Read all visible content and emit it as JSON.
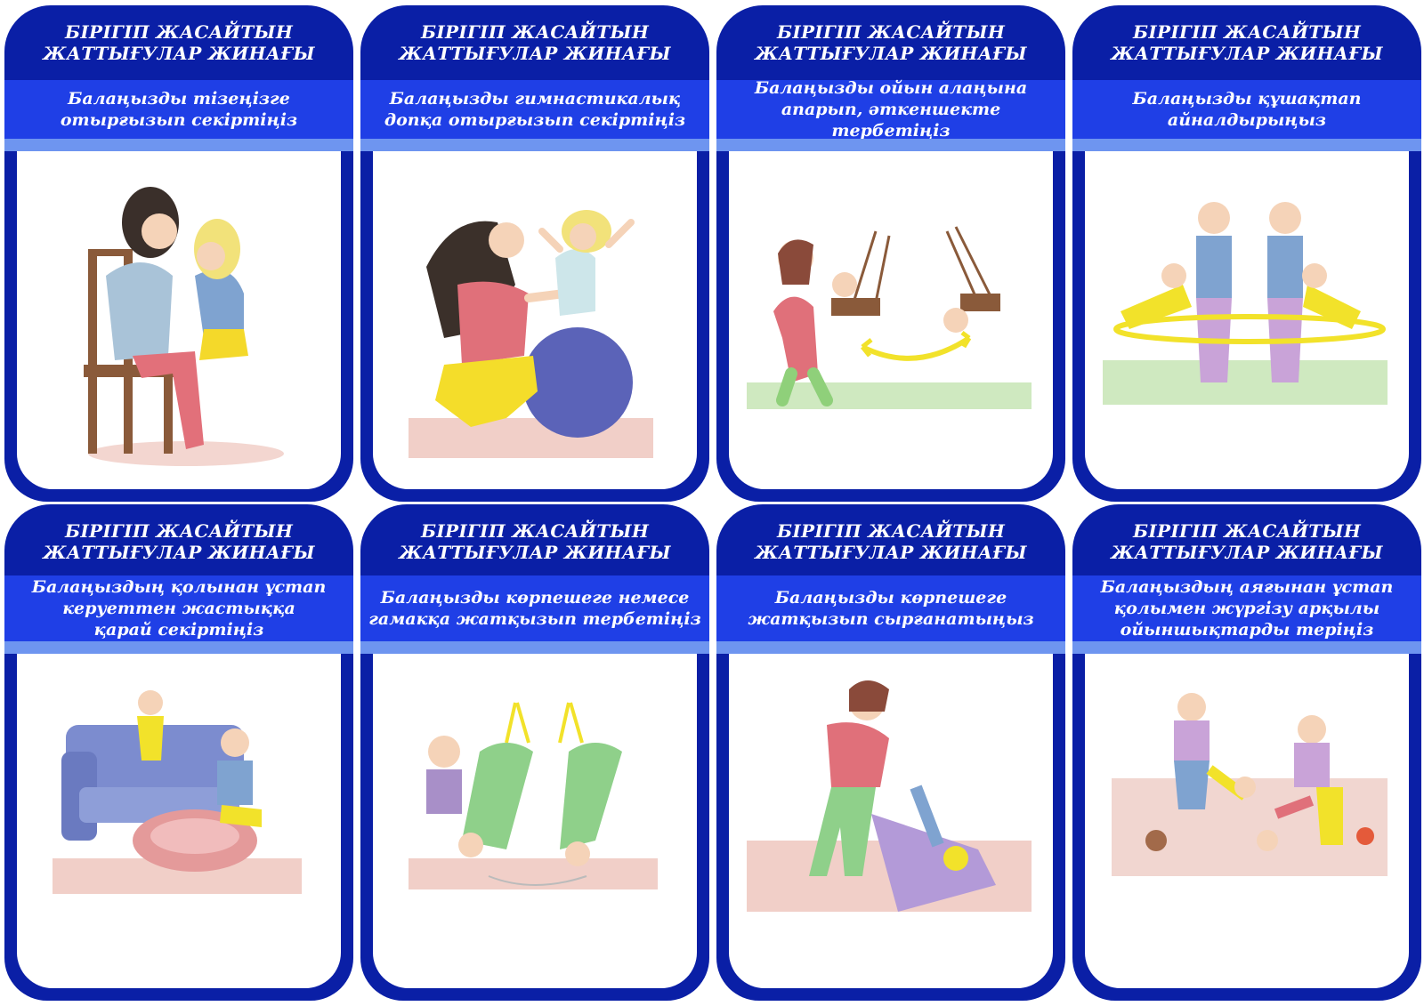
{
  "header_text": [
    "БІРІГІП ЖАСАЙТЫН",
    "ЖАТТЫҒУЛАР ЖИНАҒЫ"
  ],
  "cards": [
    {
      "title_line1": "БІРІГІП ЖАСАЙТЫН",
      "title_line2": "ЖАТТЫҒУЛАР ЖИНАҒЫ",
      "task_lines": [
        "Балаңызды тізеңізге",
        "отырғызып секіртіңіз"
      ],
      "illustration": "mother-knee-bounce-illustration"
    },
    {
      "title_line1": "БІРІГІП ЖАСАЙТЫН",
      "title_line2": "ЖАТТЫҒУЛАР ЖИНАҒЫ",
      "task_lines": [
        "Балаңызды гимнастикалық",
        "допқа отырғызып секіртіңіз"
      ],
      "illustration": "gym-ball-bounce-illustration"
    },
    {
      "title_line1": "БІРІГІП ЖАСАЙТЫН",
      "title_line2": "ЖАТТЫҒУЛАР ЖИНАҒЫ",
      "task_lines": [
        "Балаңызды ойын алаңына",
        "апарып, әткеншекте тербетіңіз"
      ],
      "illustration": "swing-illustration"
    },
    {
      "title_line1": "БІРІГІП ЖАСАЙТЫН",
      "title_line2": "ЖАТТЫҒУЛАР ЖИНАҒЫ",
      "task_lines": [
        "Балаңызды құшақтап",
        "айналдырыңыз"
      ],
      "illustration": "hug-spin-illustration"
    },
    {
      "title_line1": "БІРІГІП ЖАСАЙТЫН",
      "title_line2": "ЖАТТЫҒУЛАР ЖИНАҒЫ",
      "task_lines": [
        "Балаңыздың қолынан ұстап",
        "керуеттен жастыққа",
        "қарай секіртіңіз"
      ],
      "illustration": "sofa-pillow-jump-illustration"
    },
    {
      "title_line1": "БІРІГІП ЖАСАЙТЫН",
      "title_line2": "ЖАТТЫҒУЛАР ЖИНАҒЫ",
      "task_lines": [
        "Балаңызды көрпешеге немесе",
        "гамакқа жатқызып тербетіңіз"
      ],
      "illustration": "hammock-illustration"
    },
    {
      "title_line1": "БІРІГІП ЖАСАЙТЫН",
      "title_line2": "ЖАТТЫҒУЛАР ЖИНАҒЫ",
      "task_lines": [
        "Балаңызды көрпешеге",
        "жатқызып сырғанатыңыз"
      ],
      "illustration": "blanket-slide-illustration"
    },
    {
      "title_line1": "БІРІГІП ЖАСАЙТЫН",
      "title_line2": "ЖАТТЫҒУЛАР ЖИНАҒЫ",
      "task_lines": [
        "Балаңыздың аяғынан ұстап",
        "қолымен жүргізу арқылы",
        "ойыншықтарды теріңіз"
      ],
      "illustration": "wheelbarrow-walk-illustration"
    }
  ],
  "colors": {
    "card_bg": "#0a1fa6",
    "band": "#1f3fe6",
    "stripe": "#6e95f0",
    "text": "#ffffff"
  }
}
